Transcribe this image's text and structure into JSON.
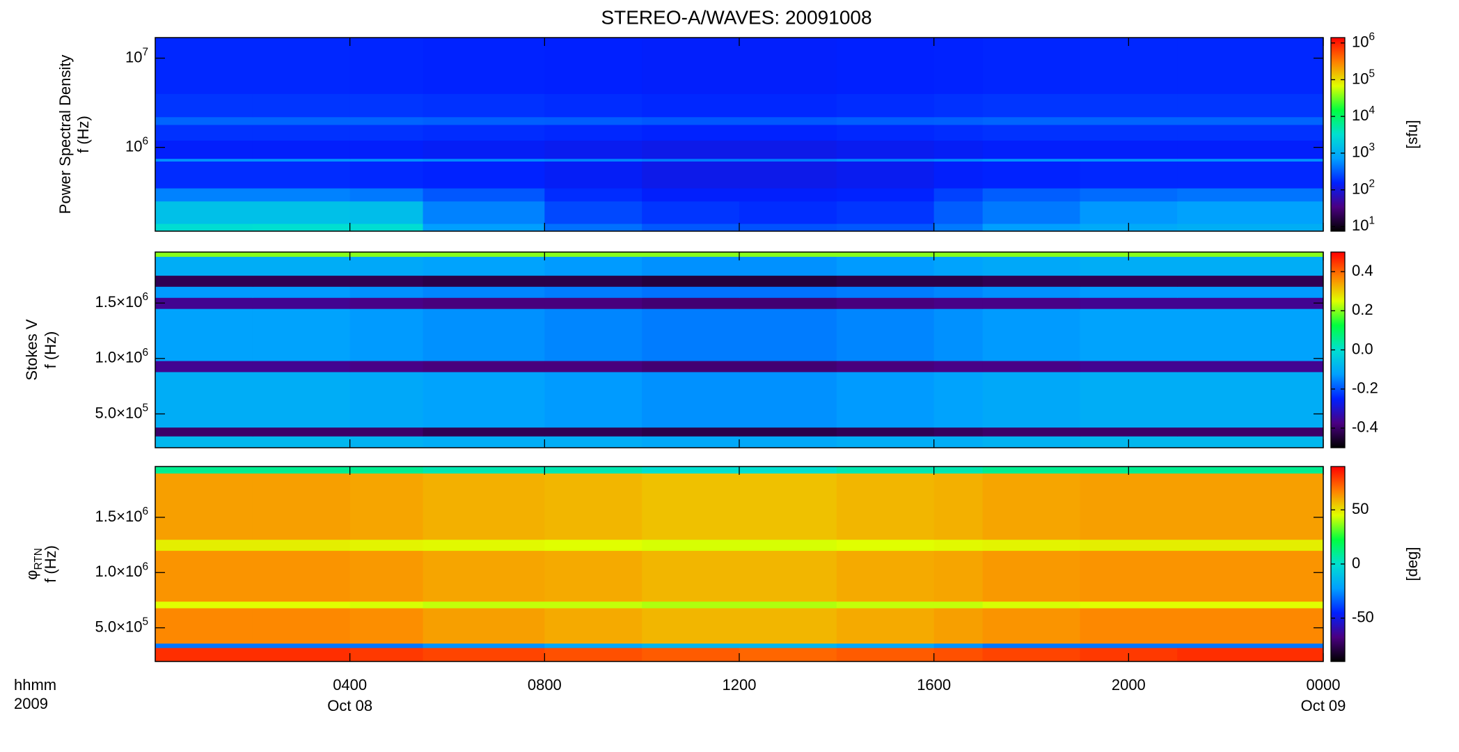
{
  "title": "STEREO-A/WAVES: 20091008",
  "x_axis": {
    "xlim": [
      0,
      24
    ],
    "xticks": [
      {
        "value": 4,
        "label": "0400"
      },
      {
        "value": 8,
        "label": "0800"
      },
      {
        "value": 12,
        "label": "1200"
      },
      {
        "value": 16,
        "label": "1600"
      },
      {
        "value": 20,
        "label": "2000"
      },
      {
        "value": 24,
        "label": "0000"
      }
    ],
    "date_labels": [
      {
        "value": 4,
        "label": "Oct 08"
      },
      {
        "value": 24,
        "label": "Oct 09"
      }
    ],
    "left_labels": [
      "hhmm",
      "2009"
    ]
  },
  "chart_data": [
    {
      "type": "heatmap",
      "ylabel": [
        "Power Spectral Density",
        "f (Hz)"
      ],
      "yscale": "log",
      "ylim": [
        115000,
        17000000
      ],
      "yticks": [
        {
          "value": 1000000,
          "label": "10^6"
        },
        {
          "value": 10000000,
          "label": "10^7"
        }
      ],
      "x_edges": [
        0,
        2,
        4,
        5.5,
        8,
        10,
        12,
        14,
        16,
        17,
        19,
        21,
        24
      ],
      "y_edges": [
        115000,
        140000,
        250000,
        350000,
        700000,
        750000,
        1200000,
        1800000,
        2200000,
        4000000,
        17000000
      ],
      "z": [
        [
          3000,
          3200,
          3000,
          700,
          400,
          300,
          280,
          300,
          450,
          700,
          900,
          1000
        ],
        [
          1500,
          1500,
          1400,
          500,
          250,
          200,
          180,
          200,
          320,
          450,
          650,
          750
        ],
        [
          500,
          500,
          450,
          300,
          180,
          150,
          150,
          160,
          230,
          320,
          380,
          420
        ],
        [
          180,
          180,
          170,
          160,
          140,
          120,
          120,
          130,
          150,
          160,
          170,
          170
        ],
        [
          600,
          600,
          600,
          550,
          500,
          450,
          450,
          500,
          550,
          600,
          600,
          600
        ],
        [
          150,
          150,
          150,
          140,
          130,
          120,
          120,
          130,
          140,
          150,
          150,
          150
        ],
        [
          190,
          190,
          190,
          180,
          170,
          160,
          160,
          170,
          180,
          190,
          190,
          190
        ],
        [
          350,
          350,
          350,
          330,
          320,
          300,
          300,
          320,
          330,
          350,
          350,
          350
        ],
        [
          200,
          200,
          200,
          190,
          180,
          170,
          170,
          180,
          190,
          200,
          200,
          200
        ],
        [
          170,
          170,
          165,
          160,
          155,
          150,
          150,
          155,
          160,
          165,
          170,
          170
        ]
      ],
      "cscale": "log",
      "clim": [
        7.5,
        1400000
      ],
      "cticks": [
        {
          "value": 10,
          "label": "10^1"
        },
        {
          "value": 100,
          "label": "10^2"
        },
        {
          "value": 1000,
          "label": "10^3"
        },
        {
          "value": 10000,
          "label": "10^4"
        },
        {
          "value": 100000,
          "label": "10^5"
        },
        {
          "value": 1000000,
          "label": "10^6"
        }
      ],
      "clabel": "[sfu]",
      "colormap": [
        "#000000",
        "#4b0082",
        "#0020ff",
        "#00a0ff",
        "#00e0d0",
        "#00ff40",
        "#e0ff00",
        "#ff8000",
        "#ff0000"
      ]
    },
    {
      "type": "heatmap",
      "ylabel": [
        "Stokes V",
        "f (Hz)"
      ],
      "yscale": "linear",
      "ylim": [
        195000,
        1960000
      ],
      "yticks": [
        {
          "value": 500000,
          "label": "5.0×10^5"
        },
        {
          "value": 1000000,
          "label": "1.0×10^6"
        },
        {
          "value": 1500000,
          "label": "1.5×10^6"
        }
      ],
      "x_edges": [
        0,
        2,
        4,
        5.5,
        8,
        10,
        12,
        14,
        16,
        17,
        19,
        21,
        24
      ],
      "y_edges": [
        195000,
        300000,
        380000,
        880000,
        980000,
        1450000,
        1550000,
        1650000,
        1750000,
        1920000,
        1960000
      ],
      "z": [
        [
          -0.08,
          -0.08,
          -0.09,
          -0.1,
          -0.1,
          -0.11,
          -0.11,
          -0.1,
          -0.1,
          -0.09,
          -0.08,
          -0.08
        ],
        [
          -0.4,
          -0.4,
          -0.4,
          -0.42,
          -0.42,
          -0.43,
          -0.43,
          -0.42,
          -0.41,
          -0.4,
          -0.4,
          -0.4
        ],
        [
          -0.1,
          -0.1,
          -0.11,
          -0.12,
          -0.13,
          -0.14,
          -0.14,
          -0.13,
          -0.12,
          -0.11,
          -0.1,
          -0.1
        ],
        [
          -0.36,
          -0.36,
          -0.37,
          -0.38,
          -0.38,
          -0.39,
          -0.39,
          -0.38,
          -0.37,
          -0.37,
          -0.36,
          -0.36
        ],
        [
          -0.12,
          -0.12,
          -0.13,
          -0.14,
          -0.15,
          -0.16,
          -0.16,
          -0.15,
          -0.14,
          -0.13,
          -0.12,
          -0.12
        ],
        [
          -0.36,
          -0.36,
          -0.37,
          -0.38,
          -0.38,
          -0.39,
          -0.39,
          -0.38,
          -0.37,
          -0.37,
          -0.36,
          -0.36
        ],
        [
          -0.13,
          -0.13,
          -0.14,
          -0.15,
          -0.16,
          -0.17,
          -0.17,
          -0.16,
          -0.15,
          -0.14,
          -0.13,
          -0.13
        ],
        [
          -0.42,
          -0.42,
          -0.42,
          -0.43,
          -0.43,
          -0.44,
          -0.44,
          -0.43,
          -0.43,
          -0.42,
          -0.42,
          -0.42
        ],
        [
          -0.1,
          -0.1,
          -0.11,
          -0.12,
          -0.13,
          -0.14,
          -0.14,
          -0.13,
          -0.12,
          -0.11,
          -0.1,
          -0.1
        ],
        [
          0.2,
          0.2,
          0.2,
          0.2,
          0.2,
          0.2,
          0.2,
          0.2,
          0.2,
          0.2,
          0.2,
          0.2
        ]
      ],
      "cscale": "linear",
      "clim": [
        -0.5,
        0.5
      ],
      "cticks": [
        -0.4,
        -0.2,
        {
          "value": 0,
          "label": "0.0"
        },
        0.2,
        0.4
      ],
      "colormap": [
        "#000000",
        "#4b0082",
        "#0020ff",
        "#00a0ff",
        "#00e0d0",
        "#00ff40",
        "#e0ff00",
        "#ff8000",
        "#ff0000"
      ]
    },
    {
      "type": "heatmap",
      "ylabel": [
        "φ_RTN",
        "f (Hz)"
      ],
      "yscale": "linear",
      "ylim": [
        195000,
        1960000
      ],
      "yticks": [
        {
          "value": 500000,
          "label": "5.0×10^5"
        },
        {
          "value": 1000000,
          "label": "1.0×10^6"
        },
        {
          "value": 1500000,
          "label": "1.5×10^6"
        }
      ],
      "x_edges": [
        0,
        2,
        4,
        5.5,
        8,
        10,
        12,
        14,
        16,
        17,
        19,
        21,
        24
      ],
      "y_edges": [
        195000,
        320000,
        360000,
        680000,
        740000,
        1200000,
        1300000,
        1900000,
        1960000
      ],
      "z": [
        [
          82,
          82,
          80,
          78,
          76,
          74,
          72,
          74,
          76,
          78,
          80,
          82
        ],
        [
          -30,
          -30,
          -30,
          -25,
          -20,
          -15,
          -15,
          -20,
          -25,
          -30,
          -30,
          -30
        ],
        [
          66,
          66,
          65,
          62,
          60,
          58,
          58,
          60,
          62,
          64,
          66,
          66
        ],
        [
          45,
          45,
          44,
          42,
          42,
          40,
          40,
          42,
          42,
          44,
          45,
          45
        ],
        [
          64,
          64,
          63,
          61,
          60,
          58,
          58,
          60,
          61,
          63,
          64,
          64
        ],
        [
          48,
          48,
          47,
          46,
          45,
          44,
          44,
          45,
          46,
          47,
          48,
          48
        ],
        [
          62,
          62,
          61,
          59,
          58,
          56,
          56,
          58,
          59,
          61,
          62,
          62
        ],
        [
          10,
          10,
          10,
          5,
          5,
          0,
          0,
          5,
          5,
          10,
          10,
          10
        ]
      ],
      "cscale": "linear",
      "clim": [
        -90,
        90
      ],
      "cticks": [
        -50,
        0,
        50
      ],
      "clabel": "[deg]",
      "colormap": [
        "#000000",
        "#4b0082",
        "#0020ff",
        "#00a0ff",
        "#00e0d0",
        "#00ff40",
        "#e0ff00",
        "#ff8000",
        "#ff0000"
      ]
    }
  ]
}
